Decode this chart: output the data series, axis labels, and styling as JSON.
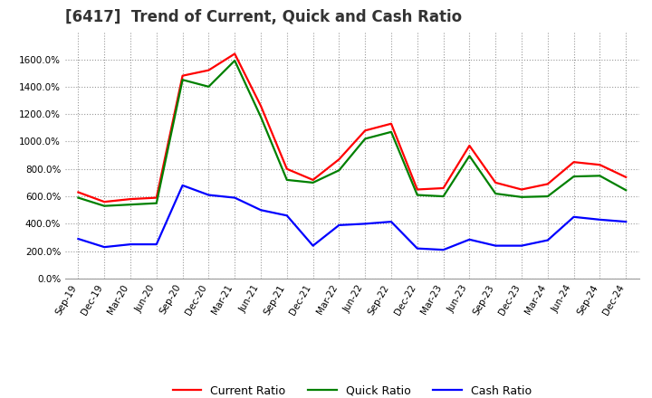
{
  "title": "[6417]  Trend of Current, Quick and Cash Ratio",
  "x_labels": [
    "Sep-19",
    "Dec-19",
    "Mar-20",
    "Jun-20",
    "Sep-20",
    "Dec-20",
    "Mar-21",
    "Jun-21",
    "Sep-21",
    "Dec-21",
    "Mar-22",
    "Jun-22",
    "Sep-22",
    "Dec-22",
    "Mar-23",
    "Jun-23",
    "Sep-23",
    "Dec-23",
    "Mar-24",
    "Jun-24",
    "Sep-24",
    "Dec-24"
  ],
  "current_ratio": [
    630,
    560,
    580,
    590,
    1480,
    1520,
    1640,
    1260,
    800,
    720,
    870,
    1080,
    1130,
    650,
    660,
    970,
    700,
    650,
    690,
    850,
    830,
    740
  ],
  "quick_ratio": [
    590,
    530,
    540,
    550,
    1450,
    1400,
    1590,
    1180,
    720,
    700,
    790,
    1020,
    1070,
    610,
    600,
    895,
    620,
    595,
    600,
    745,
    750,
    645
  ],
  "cash_ratio": [
    290,
    230,
    250,
    250,
    680,
    610,
    590,
    500,
    460,
    240,
    390,
    400,
    415,
    220,
    210,
    285,
    240,
    240,
    280,
    450,
    430,
    415
  ],
  "current_color": "#FF0000",
  "quick_color": "#008000",
  "cash_color": "#0000FF",
  "line_width": 1.6,
  "ylim": [
    0,
    1800
  ],
  "yticks": [
    0,
    200,
    400,
    600,
    800,
    1000,
    1200,
    1400,
    1600
  ],
  "background_color": "#FFFFFF",
  "plot_bg_color": "#FFFFFF",
  "grid_color": "#999999",
  "title_fontsize": 12,
  "tick_fontsize": 7.5,
  "legend_labels": [
    "Current Ratio",
    "Quick Ratio",
    "Cash Ratio"
  ],
  "legend_fontsize": 9
}
